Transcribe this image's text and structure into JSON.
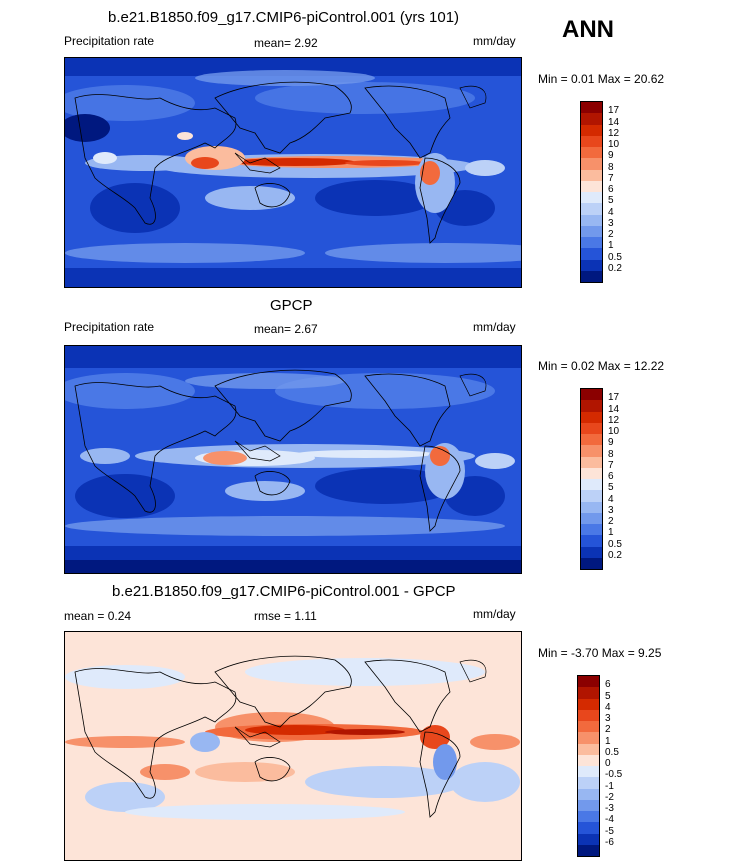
{
  "season": "ANN",
  "panels": [
    {
      "title": "b.e21.B1850.f09_g17.CMIP6-piControl.001 (yrs 101)",
      "left_label": "Precipitation rate",
      "mean_text": "mean=   2.92",
      "units": "mm/day",
      "minmax": "Min =   0.01 Max =  20.62",
      "levels": [
        "17",
        "14",
        "12",
        "10",
        "9",
        "8",
        "7",
        "6",
        "5",
        "4",
        "3",
        "2",
        "1",
        "0.5",
        "0.2"
      ],
      "colors": [
        "#8b0000",
        "#b11500",
        "#d42a00",
        "#e8471c",
        "#f26a3d",
        "#f7916a",
        "#fbbc9e",
        "#fde4d8",
        "#dfeafb",
        "#bcd1f7",
        "#98b7f2",
        "#7299ec",
        "#4a78e6",
        "#2554d8",
        "#0b33b5",
        "#00187f"
      ]
    },
    {
      "title": "GPCP",
      "left_label": "Precipitation rate",
      "mean_text": "mean=   2.67",
      "units": "mm/day",
      "minmax": "Min =   0.02 Max =  12.22",
      "levels": [
        "17",
        "14",
        "12",
        "10",
        "9",
        "8",
        "7",
        "6",
        "5",
        "4",
        "3",
        "2",
        "1",
        "0.5",
        "0.2"
      ],
      "colors": [
        "#8b0000",
        "#b11500",
        "#d42a00",
        "#e8471c",
        "#f26a3d",
        "#f7916a",
        "#fbbc9e",
        "#fde4d8",
        "#dfeafb",
        "#bcd1f7",
        "#98b7f2",
        "#7299ec",
        "#4a78e6",
        "#2554d8",
        "#0b33b5",
        "#00187f"
      ]
    },
    {
      "title": "b.e21.B1850.f09_g17.CMIP6-piControl.001 - GPCP",
      "left_label": "mean =   0.24",
      "mean_text": "rmse =   1.11",
      "units": "mm/day",
      "minmax": "Min =  -3.70 Max =   9.25",
      "levels": [
        "6",
        "5",
        "4",
        "3",
        "2",
        "1",
        "0.5",
        "0",
        "-0.5",
        "-1",
        "-2",
        "-3",
        "-4",
        "-5",
        "-6"
      ],
      "colors": [
        "#8b0000",
        "#b11500",
        "#d42a00",
        "#e8471c",
        "#f26a3d",
        "#f7916a",
        "#fbbc9e",
        "#fde4d8",
        "#dfeafb",
        "#bcd1f7",
        "#98b7f2",
        "#7299ec",
        "#4a78e6",
        "#2554d8",
        "#0b33b5",
        "#00187f"
      ]
    }
  ]
}
